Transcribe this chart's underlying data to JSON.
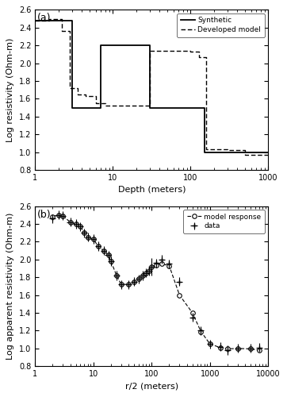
{
  "panel_a": {
    "title": "(a)",
    "xlabel": "Depth (meters)",
    "ylabel": "Log resistivity (Ohm-m)",
    "xlim": [
      1,
      1000
    ],
    "ylim": [
      0.8,
      2.6
    ],
    "yticks": [
      0.8,
      1.0,
      1.2,
      1.4,
      1.6,
      1.8,
      2.0,
      2.2,
      2.4,
      2.6
    ],
    "synthetic_x": [
      1,
      3,
      3,
      7,
      7,
      30,
      30,
      150,
      150,
      1000
    ],
    "synthetic_y": [
      2.48,
      2.48,
      1.5,
      1.5,
      2.2,
      2.2,
      1.5,
      1.5,
      1.0,
      1.0
    ],
    "developed_x": [
      1,
      1.5,
      1.5,
      2.2,
      2.2,
      2.8,
      2.8,
      3.5,
      3.5,
      4.5,
      4.5,
      6.0,
      6.0,
      8.0,
      8.0,
      30,
      30,
      100,
      100,
      130,
      130,
      160,
      160,
      300,
      300,
      500,
      500,
      1000
    ],
    "developed_y": [
      2.48,
      2.48,
      2.5,
      2.5,
      2.36,
      2.36,
      1.72,
      1.72,
      1.65,
      1.65,
      1.63,
      1.63,
      1.55,
      1.55,
      1.52,
      1.52,
      2.14,
      2.14,
      2.13,
      2.13,
      2.07,
      2.07,
      1.03,
      1.03,
      1.02,
      1.02,
      0.97,
      0.97
    ]
  },
  "panel_b": {
    "title": "(b)",
    "xlabel": "r/2 (meters)",
    "ylabel": "Log apparent resistivity (Ohm-m)",
    "xlim": [
      1,
      10000
    ],
    "ylim": [
      0.8,
      2.6
    ],
    "yticks": [
      0.8,
      1.0,
      1.2,
      1.4,
      1.6,
      1.8,
      2.0,
      2.2,
      2.4,
      2.6
    ],
    "data_x": [
      2,
      2.5,
      3,
      4,
      5,
      6,
      7,
      8,
      10,
      12,
      15,
      18,
      20,
      25,
      30,
      40,
      50,
      60,
      70,
      80,
      90,
      100,
      120,
      150,
      200,
      300,
      500,
      700,
      1000,
      1500,
      2000,
      3000,
      5000,
      7000
    ],
    "data_y": [
      2.46,
      2.5,
      2.49,
      2.42,
      2.4,
      2.37,
      2.3,
      2.25,
      2.23,
      2.15,
      2.1,
      2.05,
      1.98,
      1.82,
      1.72,
      1.72,
      1.75,
      1.78,
      1.82,
      1.85,
      1.87,
      1.92,
      1.96,
      2.0,
      1.95,
      1.75,
      1.35,
      1.2,
      1.05,
      1.02,
      0.98,
      1.0,
      1.0,
      1.01
    ],
    "data_yerr": [
      0.05,
      0.05,
      0.05,
      0.05,
      0.05,
      0.05,
      0.05,
      0.05,
      0.05,
      0.05,
      0.05,
      0.05,
      0.05,
      0.05,
      0.05,
      0.05,
      0.05,
      0.05,
      0.05,
      0.05,
      0.05,
      0.1,
      0.05,
      0.05,
      0.05,
      0.05,
      0.05,
      0.05,
      0.05,
      0.05,
      0.05,
      0.05,
      0.05,
      0.05
    ],
    "data_xerr_factor": 0.12,
    "model_x": [
      2,
      2.5,
      3,
      4,
      5,
      6,
      7,
      8,
      10,
      12,
      15,
      18,
      20,
      25,
      30,
      40,
      50,
      60,
      70,
      80,
      90,
      100,
      120,
      150,
      200,
      300,
      500,
      700,
      1000,
      1500,
      2000,
      3000,
      5000,
      7000
    ],
    "model_y": [
      2.48,
      2.5,
      2.49,
      2.42,
      2.4,
      2.37,
      2.3,
      2.25,
      2.23,
      2.15,
      2.1,
      2.05,
      1.98,
      1.82,
      1.72,
      1.72,
      1.75,
      1.78,
      1.82,
      1.85,
      1.87,
      1.92,
      1.94,
      1.95,
      1.93,
      1.6,
      1.4,
      1.19,
      1.05,
      1.01,
      0.995,
      1.0,
      0.995,
      0.98
    ]
  },
  "line_color": "#000000",
  "bg_color": "#ffffff"
}
